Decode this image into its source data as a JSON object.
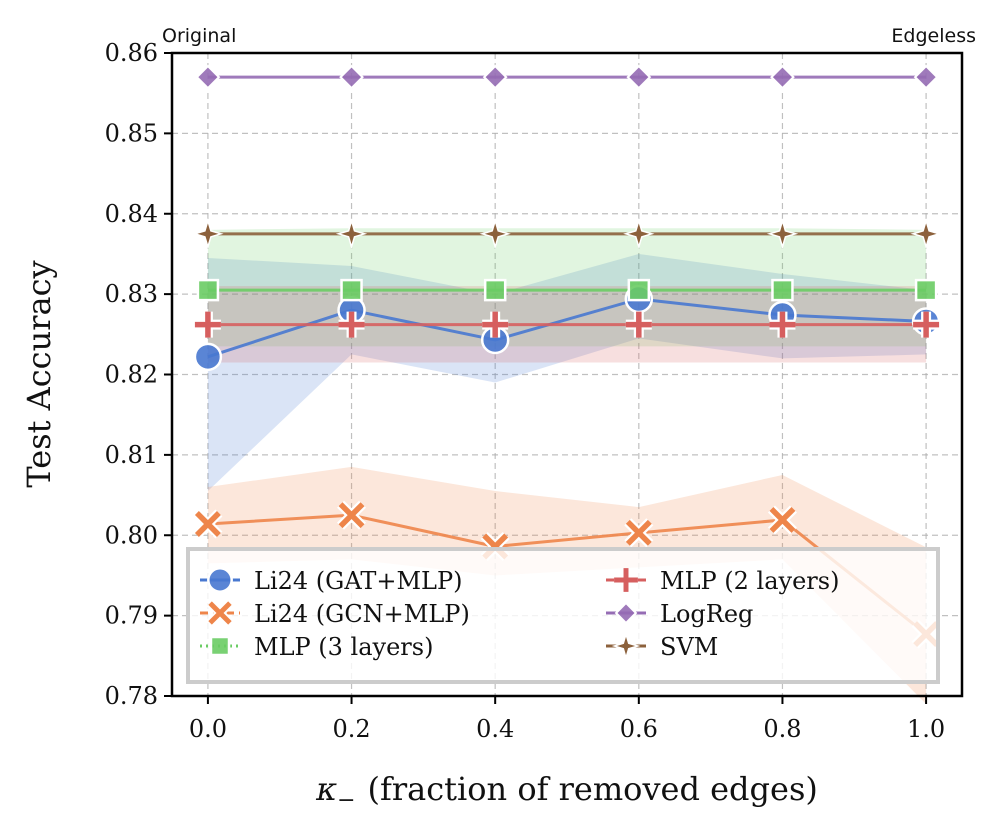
{
  "chart_data": {
    "type": "line",
    "title": "",
    "xlabel": "κ₋ (fraction of removed edges)",
    "xlabel_main": "(fraction of removed edges)",
    "xlabel_symbol": "κ",
    "xlabel_subscript": "−",
    "ylabel": "Test Accuracy",
    "x": [
      0.0,
      0.2,
      0.4,
      0.6,
      0.8,
      1.0
    ],
    "xlim": [
      -0.05,
      1.05
    ],
    "ylim": [
      0.78,
      0.86
    ],
    "xticks": [
      0.0,
      0.2,
      0.4,
      0.6,
      0.8,
      1.0
    ],
    "xtick_labels": [
      "0.0",
      "0.2",
      "0.4",
      "0.6",
      "0.8",
      "1.0"
    ],
    "yticks": [
      0.78,
      0.79,
      0.8,
      0.81,
      0.82,
      0.83,
      0.84,
      0.85,
      0.86
    ],
    "ytick_labels": [
      "0.78",
      "0.79",
      "0.80",
      "0.81",
      "0.82",
      "0.83",
      "0.84",
      "0.85",
      "0.86"
    ],
    "grid": true,
    "legend_position": "lower-left",
    "annotations": {
      "left": "Original",
      "right": "Edgeless"
    },
    "series": [
      {
        "name": "Li24 (GAT+MLP)",
        "color": "#4878d0",
        "marker": "circle",
        "linestyle": "solid",
        "values": [
          0.8222,
          0.828,
          0.8243,
          0.8294,
          0.8274,
          0.8266
        ],
        "lower": [
          0.8055,
          0.8225,
          0.819,
          0.8245,
          0.822,
          0.8225
        ],
        "upper": [
          0.8345,
          0.8335,
          0.83,
          0.835,
          0.8325,
          0.8305
        ]
      },
      {
        "name": "Li24 (GCN+MLP)",
        "color": "#ee854a",
        "marker": "x",
        "linestyle": "dashed",
        "values": [
          0.8014,
          0.8025,
          0.7986,
          0.8003,
          0.8019,
          0.7877
        ],
        "lower": [
          0.7965,
          0.797,
          0.795,
          0.796,
          0.797,
          0.779
        ],
        "upper": [
          0.806,
          0.8085,
          0.8055,
          0.8035,
          0.8075,
          0.7985
        ]
      },
      {
        "name": "MLP (3 layers)",
        "color": "#6acc64",
        "marker": "square",
        "linestyle": "dotted",
        "values": [
          0.8305,
          0.8305,
          0.8305,
          0.8305,
          0.8305,
          0.8305
        ],
        "lower": [
          0.8235,
          0.8235,
          0.8235,
          0.8235,
          0.8235,
          0.8235
        ],
        "upper": [
          0.838,
          0.8382,
          0.8382,
          0.8382,
          0.8382,
          0.838
        ]
      },
      {
        "name": "MLP (2 layers)",
        "color": "#d65f5f",
        "marker": "plus",
        "linestyle": "solid",
        "values": [
          0.8262,
          0.8262,
          0.8262,
          0.8262,
          0.8262,
          0.8262
        ],
        "lower": [
          0.8215,
          0.8215,
          0.8215,
          0.8215,
          0.8215,
          0.8215
        ],
        "upper": [
          0.831,
          0.831,
          0.831,
          0.831,
          0.831,
          0.831
        ]
      },
      {
        "name": "LogReg",
        "color": "#956cb4",
        "marker": "diamond",
        "linestyle": "solid",
        "values": [
          0.857,
          0.857,
          0.857,
          0.857,
          0.857,
          0.857
        ],
        "lower": [
          0.857,
          0.857,
          0.857,
          0.857,
          0.857,
          0.857
        ],
        "upper": [
          0.857,
          0.857,
          0.857,
          0.857,
          0.857,
          0.857
        ]
      },
      {
        "name": "SVM",
        "color": "#8c613c",
        "marker": "star",
        "linestyle": "solid",
        "values": [
          0.8375,
          0.8375,
          0.8375,
          0.8375,
          0.8375,
          0.8375
        ],
        "lower": [
          0.8375,
          0.8375,
          0.8375,
          0.8375,
          0.8375,
          0.8375
        ],
        "upper": [
          0.8375,
          0.8375,
          0.8375,
          0.8375,
          0.8375,
          0.8375
        ]
      }
    ]
  }
}
